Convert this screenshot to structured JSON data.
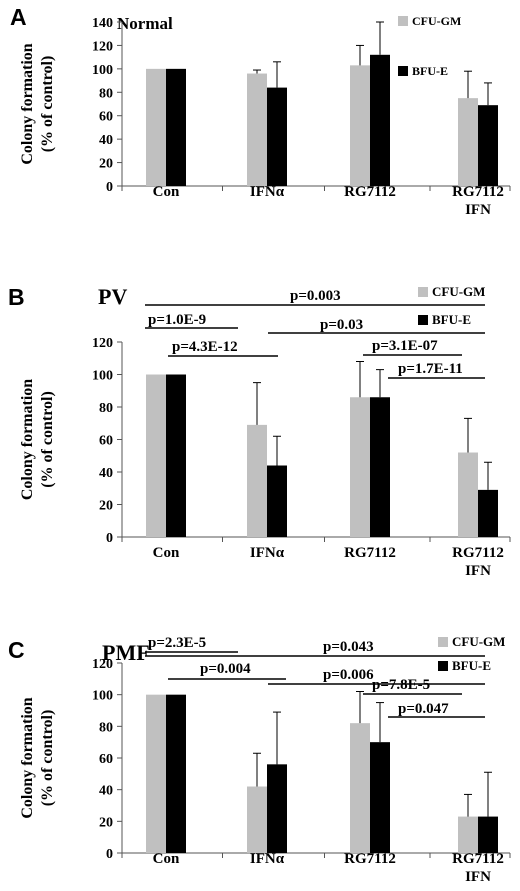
{
  "chart_data": [
    {
      "panel_label": "A",
      "type": "bar",
      "title": "Normal",
      "ylabel": [
        "Colony formation",
        "(% of control)"
      ],
      "ylim": [
        0,
        140
      ],
      "yticks": [
        0,
        20,
        40,
        60,
        80,
        100,
        120,
        140
      ],
      "categories": [
        [
          "Con"
        ],
        [
          "IFNα"
        ],
        [
          "RG7112"
        ],
        [
          "RG7112",
          "IFN"
        ]
      ],
      "series": [
        {
          "name": "CFU-GM",
          "color": "#c0c0c0",
          "values": [
            100,
            96,
            103,
            75
          ],
          "errors": [
            0.5,
            3,
            17,
            23
          ]
        },
        {
          "name": "BFU-E",
          "color": "#000000",
          "values": [
            100,
            84,
            112,
            69
          ],
          "errors": [
            0.5,
            22,
            28,
            19
          ]
        }
      ],
      "legend": "top-right",
      "annotations": []
    },
    {
      "panel_label": "B",
      "type": "bar",
      "title": "PV",
      "ylabel": [
        "Colony formation",
        "(% of control)"
      ],
      "ylim": [
        0,
        120
      ],
      "yticks": [
        0,
        20,
        40,
        60,
        80,
        100,
        120
      ],
      "categories": [
        [
          "Con"
        ],
        [
          "IFNα"
        ],
        [
          "RG7112"
        ],
        [
          "RG7112",
          "IFN"
        ]
      ],
      "series": [
        {
          "name": "CFU-GM",
          "color": "#c0c0c0",
          "values": [
            100,
            69,
            86,
            52
          ],
          "errors": [
            0.5,
            26,
            22,
            21
          ]
        },
        {
          "name": "BFU-E",
          "color": "#000000",
          "values": [
            100,
            44,
            86,
            29
          ],
          "errors": [
            0.5,
            18,
            17,
            17
          ]
        }
      ],
      "legend": "top-right",
      "annotations": [
        "p=1.0E-9",
        "p=4.3E-12",
        "p=0.003",
        "p=0.03",
        "p=3.1E-07",
        "p=1.7E-11"
      ]
    },
    {
      "panel_label": "C",
      "type": "bar",
      "title": "PMF",
      "ylabel": [
        "Colony formation",
        "(% of control)"
      ],
      "ylim": [
        0,
        120
      ],
      "yticks": [
        0,
        20,
        40,
        60,
        80,
        100,
        120
      ],
      "categories": [
        [
          "Con"
        ],
        [
          "IFNα"
        ],
        [
          "RG7112"
        ],
        [
          "RG7112",
          "IFN"
        ]
      ],
      "series": [
        {
          "name": "CFU-GM",
          "color": "#c0c0c0",
          "values": [
            100,
            42,
            82,
            23
          ],
          "errors": [
            0.5,
            21,
            20,
            14
          ]
        },
        {
          "name": "BFU-E",
          "color": "#000000",
          "values": [
            100,
            56,
            70,
            23
          ],
          "errors": [
            0.5,
            33,
            25,
            28
          ]
        }
      ],
      "legend": "top-right",
      "annotations": [
        "p=2.3E-5",
        "p=0.004",
        "p=0.043",
        "p=0.006",
        "p=7.8E-5",
        "p=0.047"
      ]
    }
  ]
}
